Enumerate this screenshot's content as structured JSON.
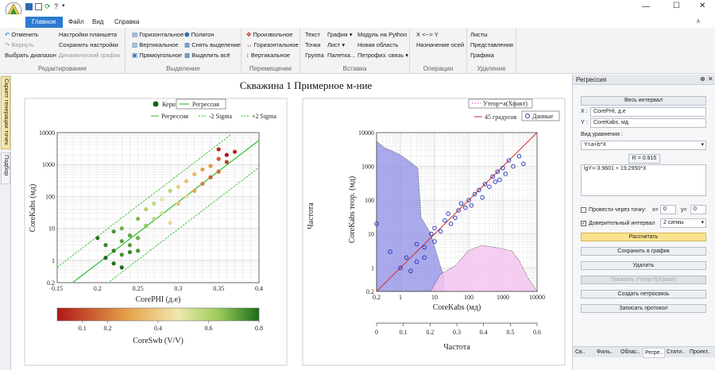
{
  "colors": {
    "accent": "#2b7bd0",
    "regression": "#2fbf2f",
    "crossplot_line": "#d42a2a",
    "data_marker": "#1e2fb5",
    "shaded_blue": "#8e8ee6",
    "shaded_pink": "#f3c6f0",
    "highlight_button": "#fbe38c"
  },
  "window": {
    "title": "",
    "min_label": "—",
    "max_label": "☐",
    "close_label": "✕"
  },
  "ribbon": {
    "tabs": [
      "Главное",
      "Файл",
      "Вид",
      "Справка"
    ],
    "groups": [
      {
        "label": "Редактирование",
        "items": [
          "Отменить",
          "Вернуть",
          "Выбрать диапазон",
          "Настройки планшета",
          "Сохранить настройки",
          "Динамический график"
        ]
      },
      {
        "label": "Выделение",
        "items": [
          "Горизонтальное",
          "Вертикальное",
          "Прямоугольное",
          "Полигон",
          "Снять выделение",
          "Выделить всё"
        ]
      },
      {
        "label": "Перемещение",
        "items": [
          "Произвольное",
          "Горизонтальное",
          "Вертикальное"
        ]
      },
      {
        "label": "Вставка",
        "items": [
          "Текст",
          "Точки",
          "Группа",
          "График",
          "Лист",
          "Палетка...",
          "Модуль на Python",
          "Новая область",
          "Петрофиз. связь"
        ]
      },
      {
        "label": "Операции",
        "items": [
          "X <--> Y",
          "Назначение осей"
        ]
      },
      {
        "label": "Удаление",
        "items": [
          "Листы",
          "Представления",
          "Графика"
        ]
      }
    ]
  },
  "left_tabs": [
    "Скрипт генерации точек",
    "Подбор"
  ],
  "plot": {
    "title": "Скважина 1 Примерное м-ние"
  },
  "chart_data": [
    {
      "type": "scatter",
      "title": "",
      "xlabel": "CorePHI (д.е)",
      "ylabel": "CoreKabs (мд)",
      "xlim": [
        0.15,
        0.4
      ],
      "ylim": [
        0.2,
        10000
      ],
      "yscale": "log",
      "xticks": [
        "0.15",
        "0.2",
        "0.25",
        "0.3",
        "0.35",
        "0.4"
      ],
      "yticks": [
        "0.2",
        "1",
        "10",
        "100",
        "1000",
        "10000"
      ],
      "legend": [
        "Керн",
        "Регрессия",
        "Регрессия",
        "-2 Sigma",
        "+2 Sigma"
      ],
      "colorbar": {
        "label": "CoreSwb (V/V)",
        "ticks": [
          "0.1",
          "0.2",
          "0.4",
          "0.6",
          "0.8"
        ]
      },
      "regression": {
        "a": -3.9601,
        "b": 19.295
      },
      "x": [
        0.2,
        0.21,
        0.21,
        0.22,
        0.22,
        0.22,
        0.23,
        0.23,
        0.23,
        0.23,
        0.24,
        0.24,
        0.24,
        0.25,
        0.25,
        0.25,
        0.26,
        0.26,
        0.27,
        0.27,
        0.28,
        0.28,
        0.29,
        0.29,
        0.3,
        0.3,
        0.31,
        0.31,
        0.32,
        0.32,
        0.33,
        0.33,
        0.34,
        0.34,
        0.35,
        0.35,
        0.35,
        0.36,
        0.36,
        0.37
      ],
      "y": [
        5,
        3,
        1.2,
        8,
        2,
        0.8,
        4,
        1.5,
        10,
        0.6,
        3,
        6,
        1.8,
        20,
        5,
        2,
        40,
        12,
        60,
        20,
        80,
        30,
        15,
        150,
        200,
        60,
        300,
        100,
        500,
        150,
        700,
        250,
        900,
        400,
        1500,
        600,
        3000,
        1200,
        2000,
        2500
      ],
      "swb": [
        0.78,
        0.76,
        0.8,
        0.74,
        0.77,
        0.79,
        0.72,
        0.75,
        0.7,
        0.8,
        0.73,
        0.71,
        0.76,
        0.68,
        0.7,
        0.74,
        0.62,
        0.66,
        0.58,
        0.6,
        0.52,
        0.55,
        0.45,
        0.6,
        0.42,
        0.4,
        0.38,
        0.45,
        0.35,
        0.3,
        0.3,
        0.25,
        0.28,
        0.2,
        0.2,
        0.22,
        0.12,
        0.15,
        0.1,
        0.12
      ]
    },
    {
      "type": "scatter",
      "title": "",
      "xlabel": "CoreKabs (мд)",
      "ylabel": "CoreKabs теор. (мд)",
      "y2label": "Частота",
      "x2label": "Частота",
      "xlim": [
        0.2,
        10000
      ],
      "ylim": [
        0.2,
        10000
      ],
      "xscale": "log",
      "yscale": "log",
      "xticks": [
        "0.2",
        "1",
        "10",
        "100",
        "1000",
        "10000"
      ],
      "yticks": [
        "0.2",
        "1",
        "10",
        "100",
        "1000",
        "10000"
      ],
      "x2ticks": [
        "0",
        "0.1",
        "0.2",
        "0.3",
        "0.4",
        "0.5",
        "0.6"
      ],
      "legend": [
        "Утеор=а(Хфакт)",
        "45 градусов",
        "Данные"
      ],
      "x": [
        0.2,
        0.5,
        1,
        1.5,
        2,
        3,
        3,
        5,
        5,
        8,
        10,
        10,
        15,
        20,
        25,
        30,
        40,
        50,
        60,
        80,
        100,
        120,
        150,
        200,
        250,
        300,
        400,
        500,
        600,
        700,
        800,
        1000,
        1200,
        1500,
        2000,
        3000,
        4000
      ],
      "y": [
        20,
        3,
        1,
        2,
        0.8,
        5,
        1.5,
        4,
        2,
        10,
        6,
        15,
        12,
        25,
        40,
        20,
        30,
        50,
        80,
        60,
        100,
        70,
        150,
        200,
        120,
        300,
        250,
        500,
        350,
        700,
        400,
        900,
        600,
        1500,
        1000,
        2000,
        1200
      ]
    }
  ],
  "right_panel": {
    "header": "Регрессия",
    "interval_label": "Весь интервал",
    "x_label": "X :",
    "x_value": "CorePHI, д.е",
    "y_label": "Y :",
    "y_value": "CoreKabs, мд",
    "eq_label": "Вид уравнения :",
    "eq_value": "Y=a+b*X",
    "r_value": "R = 0.915",
    "formula": "lgY=-3.9601 + 19.2950*X",
    "through_point": "Провести через точку:",
    "x_eq": "x=",
    "x_pt": "0",
    "y_eq": "y=",
    "y_pt": "0",
    "conf_label": "Доверительный интервал",
    "conf_value": "2 сигмы",
    "btn_calc": "Рассчитать",
    "btn_save": "Сохранить в график",
    "btn_delete": "Удалить",
    "btn_show": "Показать Утеор=f(Хфакт)",
    "btn_petro": "Создать петросвязь",
    "btn_report": "Записать протокол",
    "bottom_tabs": [
      "Св..",
      "Филь..",
      "Облас..",
      "Регре..",
      "Стати..",
      "Проект.."
    ]
  }
}
